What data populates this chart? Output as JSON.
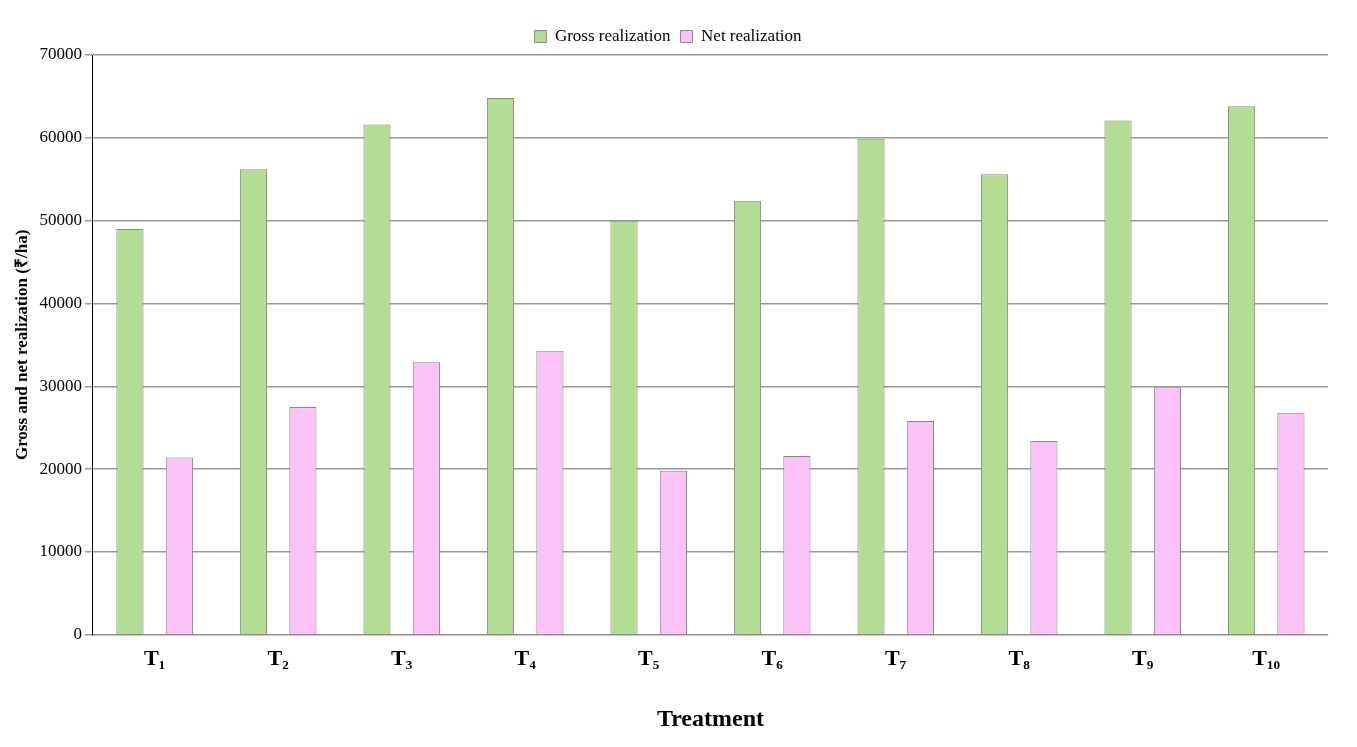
{
  "chart_data": {
    "type": "bar",
    "xlabel": "Treatment",
    "ylabel": "Gross and net realization (₹/ha)",
    "categories": [
      "T₁",
      "T₂",
      "T₃",
      "T₄",
      "T₅",
      "T₆",
      "T₇",
      "T₈",
      "T₉",
      "T₁₀"
    ],
    "series": [
      {
        "name": "Gross realization",
        "color": "#b3dd95",
        "values": [
          49000,
          56200,
          61600,
          64800,
          50000,
          52400,
          59900,
          55600,
          62100,
          63800
        ]
      },
      {
        "name": "Net realization",
        "color": "#fbc3f5",
        "values": [
          21400,
          27500,
          32900,
          34300,
          19800,
          21600,
          25800,
          23400,
          29900,
          26800
        ]
      }
    ],
    "ylim": [
      0,
      70000
    ],
    "yticks": [
      0,
      10000,
      20000,
      30000,
      40000,
      50000,
      60000,
      70000
    ],
    "grid": "y",
    "legend": "top"
  }
}
